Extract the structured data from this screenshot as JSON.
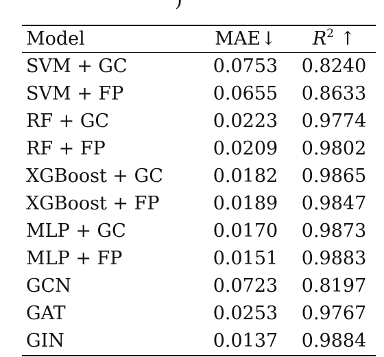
{
  "top_fragment": ")",
  "table": {
    "headers": {
      "model": "Model",
      "mae": "MAE↓",
      "r2_symbol": "R",
      "r2_power": "2",
      "r2_arrow": " ↑"
    },
    "rows": [
      {
        "model": "SVM + GC",
        "mae": "0.0753",
        "r2": "0.8240"
      },
      {
        "model": "SVM + FP",
        "mae": "0.0655",
        "r2": "0.8633"
      },
      {
        "model": "RF + GC",
        "mae": "0.0223",
        "r2": "0.9774"
      },
      {
        "model": "RF + FP",
        "mae": "0.0209",
        "r2": "0.9802"
      },
      {
        "model": "XGBoost + GC",
        "mae": "0.0182",
        "r2": "0.9865"
      },
      {
        "model": "XGBoost + FP",
        "mae": "0.0189",
        "r2": "0.9847"
      },
      {
        "model": "MLP + GC",
        "mae": "0.0170",
        "r2": "0.9873"
      },
      {
        "model": "MLP + FP",
        "mae": "0.0151",
        "r2": "0.9883"
      },
      {
        "model": "GCN",
        "mae": "0.0723",
        "r2": "0.8197"
      },
      {
        "model": "GAT",
        "mae": "0.0253",
        "r2": "0.9767"
      },
      {
        "model": "GIN",
        "mae": "0.0137",
        "r2": "0.9884",
        "best": true
      }
    ]
  }
}
